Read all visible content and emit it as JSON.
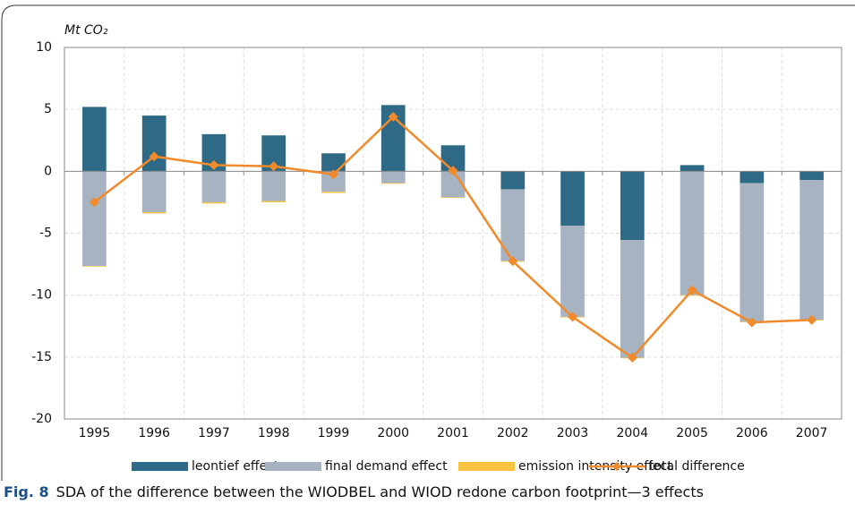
{
  "chart_data": {
    "type": "bar-line",
    "y_label": "Mt CO₂",
    "categories": [
      "1995",
      "1996",
      "1997",
      "1998",
      "1999",
      "2000",
      "2001",
      "2002",
      "2003",
      "2004",
      "2005",
      "2006",
      "2007"
    ],
    "series": [
      {
        "name": "leontief effect",
        "type": "bar",
        "color": "#2e6a85",
        "values": [
          5.2,
          4.5,
          3.0,
          2.9,
          1.45,
          5.35,
          2.1,
          -1.45,
          -4.4,
          -5.55,
          0.5,
          -0.95,
          -0.7
        ]
      },
      {
        "name": "final demand effect",
        "type": "bar",
        "color": "#a8b3c2",
        "values": [
          -7.65,
          -3.3,
          -2.5,
          -2.4,
          -1.65,
          -0.95,
          -2.1,
          -5.8,
          -7.35,
          -9.5,
          -10.0,
          -11.2,
          -11.3
        ]
      },
      {
        "name": "emission intensity effect",
        "type": "bar",
        "color": "#f7c340",
        "values": [
          -0.05,
          -0.1,
          -0.1,
          -0.1,
          -0.1,
          -0.05,
          -0.05,
          -0.05,
          -0.05,
          -0.05,
          -0.05,
          -0.05,
          -0.05
        ]
      },
      {
        "name": "total difference",
        "type": "line",
        "color": "#f08a2a",
        "values": [
          -2.5,
          1.2,
          0.5,
          0.4,
          -0.25,
          4.4,
          0.05,
          -7.25,
          -11.75,
          -15.05,
          -9.6,
          -12.2,
          -12.0
        ]
      }
    ],
    "ylim": [
      -20,
      10
    ],
    "yticks": [
      -20,
      -15,
      -10,
      -5,
      0,
      5,
      10
    ],
    "grid": true,
    "caption_label": "Fig. 8",
    "caption_text": "SDA of the difference between the WIODBEL and WIOD redone carbon footprint—3 effects"
  }
}
